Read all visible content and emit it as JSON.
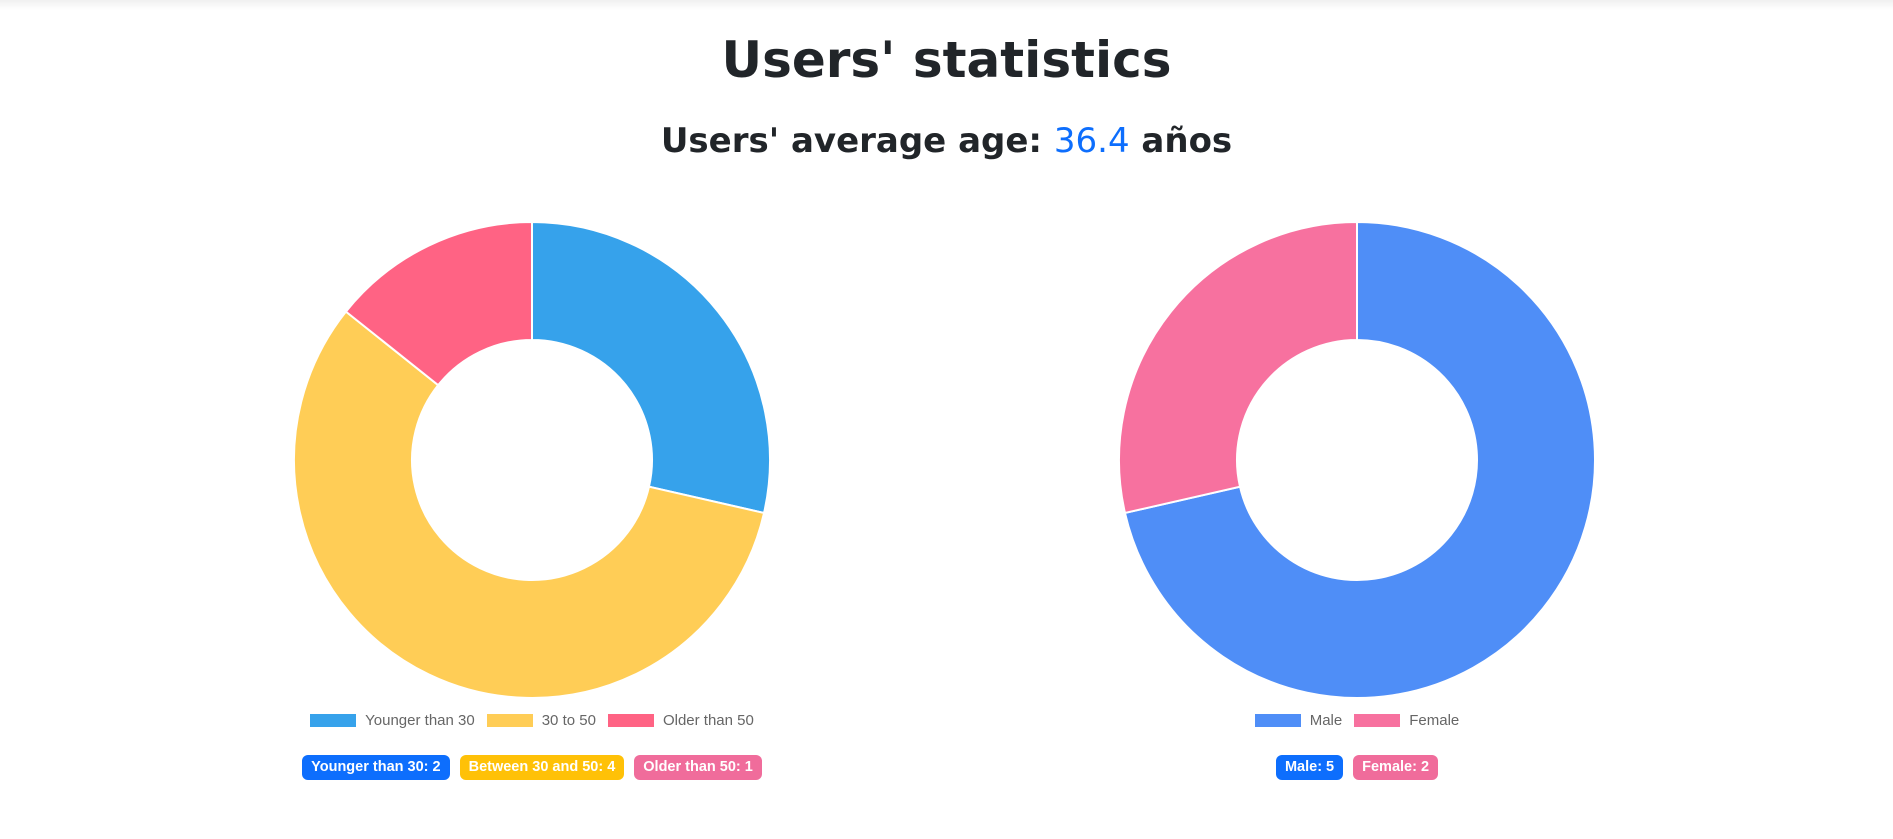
{
  "page": {
    "title": "Users' statistics",
    "average_label": "Users' average age:",
    "average_value": "36.4",
    "average_unit": "años"
  },
  "chart_data": [
    {
      "type": "doughnut",
      "categories": [
        "Younger than 30",
        "30 to 50",
        "Older than 50"
      ],
      "values": [
        2,
        4,
        1
      ],
      "colors": [
        "#36a2eb",
        "#ffcd56",
        "#ff6384"
      ],
      "legend_position": "bottom"
    },
    {
      "type": "doughnut",
      "categories": [
        "Male",
        "Female"
      ],
      "values": [
        5,
        2
      ],
      "colors": [
        "#4f8ef7",
        "#f7719f"
      ],
      "legend_position": "bottom"
    }
  ],
  "age_badges": [
    {
      "label": "Younger than 30: 2",
      "color": "#0d6efd"
    },
    {
      "label": "Between 30 and 50: 4",
      "color": "#ffc107"
    },
    {
      "label": "Older than 50: 1",
      "color": "#f06c9b"
    }
  ],
  "gender_badges": [
    {
      "label": "Male: 5",
      "color": "#0d6efd"
    },
    {
      "label": "Female: 2",
      "color": "#f06c9b"
    }
  ]
}
